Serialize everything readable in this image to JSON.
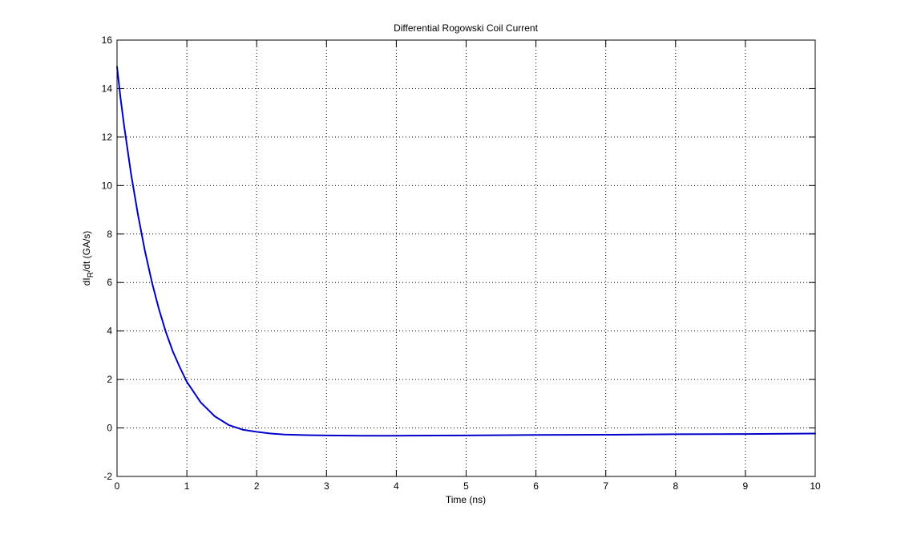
{
  "figure": {
    "background": "#ffffff"
  },
  "chart_data": {
    "type": "line",
    "title": "Differential Rogowski Coil Current",
    "xlabel": "Time (ns)",
    "ylabel": {
      "prefix": "dI",
      "subscript": "R",
      "suffix": "/dt (GA/s)"
    },
    "xlim": [
      0,
      10
    ],
    "ylim": [
      -2,
      16
    ],
    "xticks": [
      0,
      1,
      2,
      3,
      4,
      5,
      6,
      7,
      8,
      9,
      10
    ],
    "yticks": [
      -2,
      0,
      2,
      4,
      6,
      8,
      10,
      12,
      14,
      16
    ],
    "grid": true,
    "grid_style": "dotted",
    "series": [
      {
        "color": "#0000cc",
        "x": [
          0,
          0.05,
          0.1,
          0.2,
          0.3,
          0.4,
          0.5,
          0.6,
          0.7,
          0.8,
          0.9,
          1.0,
          1.2,
          1.4,
          1.6,
          1.8,
          2.0,
          2.2,
          2.4,
          2.6,
          2.8,
          3.0,
          3.5,
          4.0,
          5.0,
          6.0,
          7.0,
          8.0,
          9.0,
          10.0
        ],
        "y": [
          14.9,
          13.6,
          12.5,
          10.5,
          8.8,
          7.3,
          6.0,
          4.9,
          3.95,
          3.15,
          2.5,
          1.9,
          1.05,
          0.48,
          0.12,
          -0.07,
          -0.16,
          -0.23,
          -0.27,
          -0.29,
          -0.3,
          -0.31,
          -0.32,
          -0.32,
          -0.31,
          -0.29,
          -0.28,
          -0.26,
          -0.25,
          -0.23
        ]
      }
    ]
  }
}
